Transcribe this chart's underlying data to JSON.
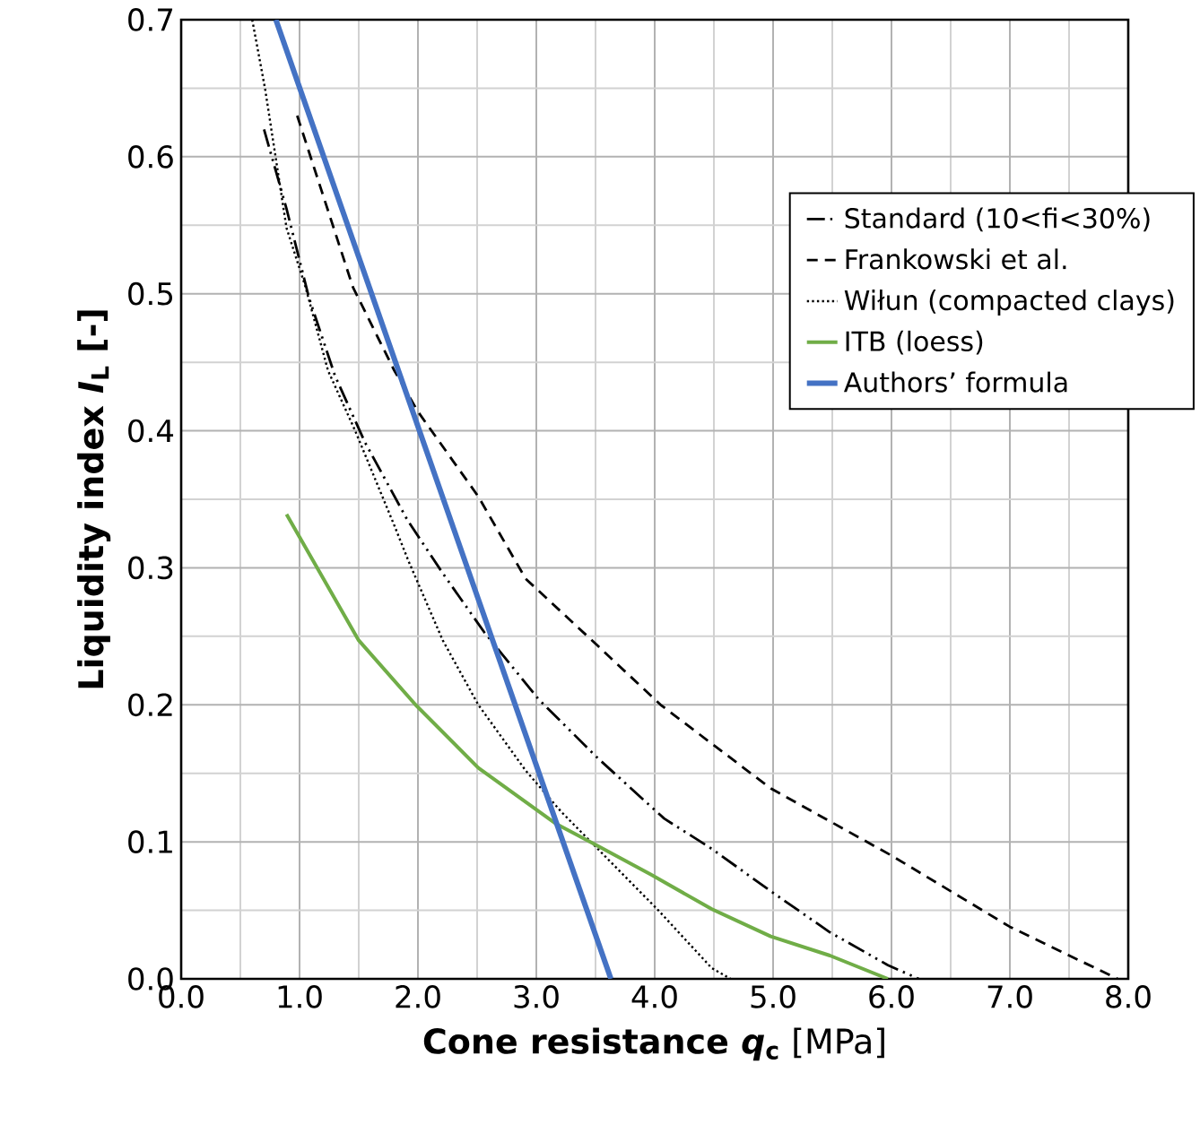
{
  "chart_data": {
    "type": "line",
    "xlabel": "**Cone resistance *q*$_{c}$** [MPa]",
    "ylabel": "Liquidity index *I*$_{L}$ [-]",
    "xlim": [
      0,
      8
    ],
    "ylim": [
      0,
      0.7
    ],
    "xticks": [
      {
        "value": 0,
        "label": "0.0"
      },
      {
        "value": 1,
        "label": "1.0"
      },
      {
        "value": 2,
        "label": "2.0"
      },
      {
        "value": 3,
        "label": "3.0"
      },
      {
        "value": 4,
        "label": "4.0"
      },
      {
        "value": 5,
        "label": "5.0"
      },
      {
        "value": 6,
        "label": "6.0"
      },
      {
        "value": 7,
        "label": "7.0"
      },
      {
        "value": 8,
        "label": "8.0"
      }
    ],
    "yticks": [
      {
        "value": 0,
        "label": "0.0"
      },
      0.1,
      0.2,
      0.3,
      0.4,
      0.5,
      0.6,
      0.7
    ],
    "grid": true,
    "legend": "top right",
    "marker": "none",
    "series": [
      {
        "name": "Standard (10<fi<30%)",
        "color": "#000000",
        "line_style": "dashdotdotted",
        "x": [
          0.7,
          0.89,
          1.08,
          1.3,
          1.55,
          1.91,
          2.21,
          2.56,
          3.02,
          3.52,
          4.08,
          4.48,
          4.98,
          5.48,
          5.97,
          6.23
        ],
        "values": [
          0.62,
          0.562,
          0.497,
          0.44,
          0.392,
          0.335,
          0.296,
          0.253,
          0.204,
          0.161,
          0.117,
          0.095,
          0.064,
          0.034,
          0.01,
          0
        ]
      },
      {
        "name": "Frankowski et al.",
        "color": "#000000",
        "line_style": "dashed",
        "x": [
          0.98,
          1.45,
          1.8,
          2.0,
          2.51,
          2.91,
          3.52,
          4.05,
          4.98,
          6.0,
          7.0,
          7.91
        ],
        "values": [
          0.63,
          0.505,
          0.444,
          0.414,
          0.352,
          0.292,
          0.243,
          0.2,
          0.139,
          0.09,
          0.038,
          0
        ]
      },
      {
        "name": "Wiłun (compacted clays)",
        "color": "#000000",
        "line_style": "dotted",
        "x": [
          0.6,
          0.71,
          0.89,
          1.05,
          1.24,
          1.47,
          1.8,
          1.92,
          2.21,
          2.51,
          2.91,
          3.21,
          3.62,
          4.02,
          4.48,
          4.64
        ],
        "values": [
          0.7,
          0.649,
          0.548,
          0.505,
          0.444,
          0.4,
          0.331,
          0.305,
          0.247,
          0.2,
          0.152,
          0.122,
          0.086,
          0.051,
          0.008,
          0
        ]
      },
      {
        "name": "ITB (loess)",
        "color": "#70ad47",
        "line_style": "solid",
        "x": [
          0.89,
          1.5,
          1.98,
          2.51,
          3.17,
          3.52,
          3.97,
          4.48,
          4.98,
          5.48,
          5.97
        ],
        "values": [
          0.339,
          0.247,
          0.2,
          0.154,
          0.113,
          0.097,
          0.076,
          0.051,
          0.031,
          0.017,
          0
        ]
      },
      {
        "name": "Authors’ formula",
        "color": "#4472c4",
        "line_style": "solid",
        "x": [
          0.8,
          3.63
        ],
        "values": [
          0.7,
          0
        ]
      }
    ]
  }
}
